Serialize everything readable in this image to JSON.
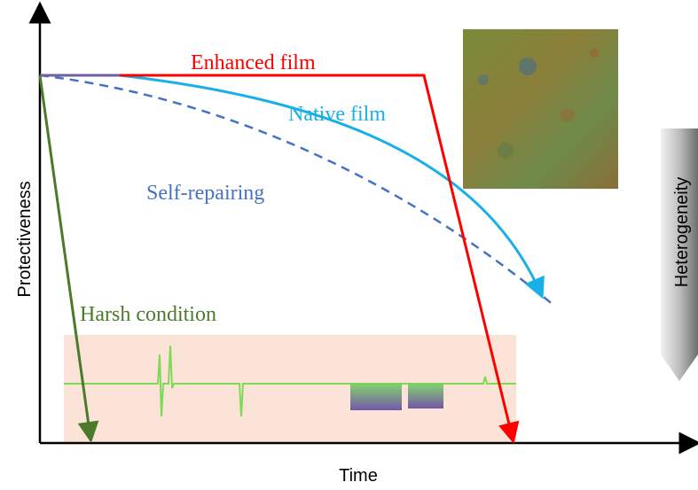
{
  "axes": {
    "x_label": "Time",
    "y_label": "Protectiveness"
  },
  "curves": [
    {
      "label": "Enhanced film"
    },
    {
      "label": "Native film"
    },
    {
      "label": "Self-repairing"
    },
    {
      "label": "Harsh condition"
    }
  ],
  "side_arrow": {
    "label": "Heterogeneity"
  }
}
